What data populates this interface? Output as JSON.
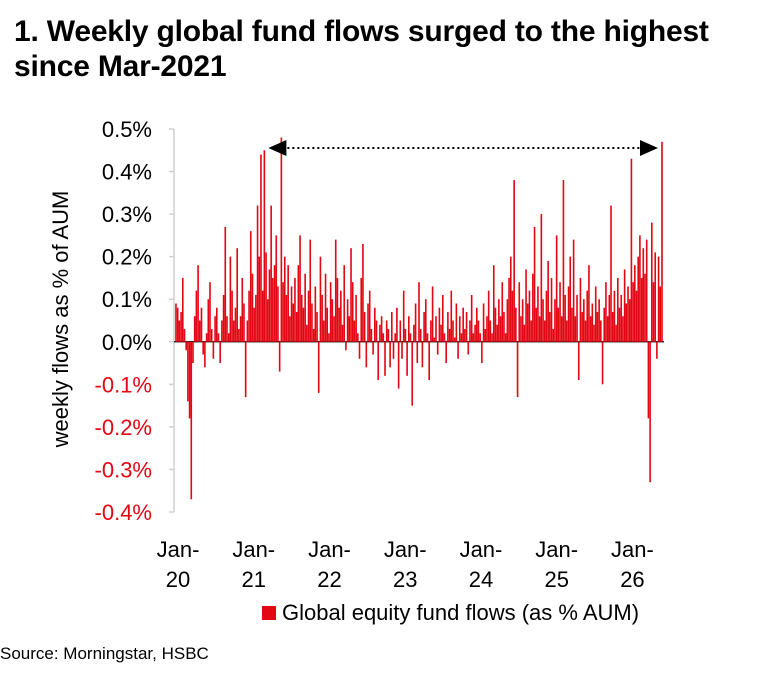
{
  "title": "1. Weekly global fund flows surged to the highest since Mar-2021",
  "source": "Source: Morningstar, HSBC",
  "colors": {
    "series": "#e30613",
    "negative_tick": "#e30613",
    "axis": "#d0d0d0",
    "arrow": "#000000"
  },
  "chart_data": {
    "type": "bar",
    "title": "1. Weekly global fund flows surged to the highest since Mar-2021",
    "ylabel": "weekly flows as % of AUM",
    "xlabel": "",
    "ylim": [
      -0.4,
      0.5
    ],
    "ytick_values": [
      0.5,
      0.4,
      0.3,
      0.2,
      0.1,
      0.0,
      -0.1,
      -0.2,
      -0.3,
      -0.4
    ],
    "ytick_labels": [
      "0.5%",
      "0.4%",
      "0.3%",
      "0.2%",
      "0.1%",
      "0.0%",
      "-0.1%",
      "-0.2%",
      "-0.3%",
      "-0.4%"
    ],
    "xtick_labels": [
      {
        "top": "Jan-",
        "bottom": "20"
      },
      {
        "top": "Jan-",
        "bottom": "21"
      },
      {
        "top": "Jan-",
        "bottom": "22"
      },
      {
        "top": "Jan-",
        "bottom": "23"
      },
      {
        "top": "Jan-",
        "bottom": "24"
      },
      {
        "top": "Jan-",
        "bottom": "25"
      },
      {
        "top": "Jan-",
        "bottom": "26"
      }
    ],
    "x_start": "2020-01",
    "x_end": "2026-06",
    "grid": false,
    "legend": "bottom",
    "series": [
      {
        "name": "Global equity fund flows (as % AUM)"
      }
    ],
    "key_points": [
      {
        "date": "2020-03",
        "value": -0.37
      },
      {
        "date": "2021-01",
        "value": 0.44
      },
      {
        "date": "2021-03",
        "value": 0.48
      },
      {
        "date": "2024-01",
        "value": 0.38
      },
      {
        "date": "2025-01",
        "value": 0.38
      },
      {
        "date": "2025-12",
        "value": 0.43
      },
      {
        "date": "2026-04",
        "value": -0.33
      },
      {
        "date": "2026-06",
        "value": 0.47
      }
    ],
    "annotation": "dotted double arrow from Mar-2021 peak to latest week",
    "weekly_values": [
      0.09,
      0.08,
      0.05,
      0.07,
      0.15,
      0.03,
      -0.02,
      -0.14,
      -0.18,
      -0.37,
      -0.05,
      0.06,
      0.12,
      0.18,
      0.05,
      0.08,
      -0.03,
      -0.06,
      0.02,
      0.1,
      0.14,
      0.03,
      -0.04,
      0.06,
      0.08,
      0.02,
      -0.05,
      0.05,
      0.11,
      0.27,
      0.06,
      0.02,
      0.2,
      0.12,
      0.05,
      0.08,
      0.22,
      0.03,
      0.06,
      0.15,
      0.09,
      -0.13,
      0.05,
      0.12,
      0.26,
      0.16,
      0.08,
      0.11,
      0.32,
      0.2,
      0.44,
      0.12,
      0.45,
      0.21,
      0.1,
      0.17,
      0.32,
      0.15,
      0.18,
      0.25,
      0.13,
      -0.07,
      0.48,
      0.14,
      0.2,
      0.11,
      0.18,
      0.06,
      0.13,
      0.09,
      0.15,
      0.07,
      0.18,
      0.25,
      0.11,
      0.08,
      0.16,
      0.04,
      0.12,
      0.24,
      0.09,
      0.03,
      0.13,
      0.07,
      -0.12,
      0.2,
      0.11,
      0.05,
      0.16,
      0.08,
      0.02,
      0.14,
      0.1,
      0.06,
      0.24,
      0.15,
      0.08,
      0.12,
      0.04,
      0.18,
      -0.02,
      0.1,
      0.06,
      0.22,
      0.14,
      0.05,
      0.11,
      0.02,
      -0.04,
      0.15,
      0.23,
      0.07,
      -0.06,
      0.09,
      0.12,
      0.03,
      -0.03,
      0.08,
      0.05,
      -0.09,
      0.04,
      0.06,
      0.02,
      -0.08,
      0.05,
      0.03,
      -0.06,
      0.07,
      -0.04,
      0.02,
      0.08,
      -0.11,
      0.05,
      -0.04,
      0.12,
      0.03,
      -0.08,
      0.06,
      0.02,
      -0.15,
      0.04,
      0.09,
      -0.05,
      0.14,
      0.03,
      -0.06,
      0.07,
      0.1,
      0.02,
      -0.09,
      0.05,
      0.13,
      0.01,
      0.06,
      -0.03,
      0.08,
      0.04,
      0.11,
      0.02,
      -0.05,
      0.07,
      0.03,
      0.12,
      0.05,
      0.01,
      0.09,
      -0.04,
      0.06,
      0.02,
      0.08,
      0.03,
      0.07,
      -0.03,
      0.05,
      0.11,
      0.02,
      0.04,
      0.08,
      0.05,
      0.02,
      -0.05,
      0.09,
      0.03,
      0.06,
      0.12,
      0.05,
      0.02,
      0.18,
      0.08,
      0.04,
      0.1,
      0.06,
      0.14,
      0.07,
      0.02,
      0.1,
      0.15,
      0.2,
      0.12,
      0.38,
      0.08,
      -0.13,
      0.14,
      0.06,
      0.1,
      0.04,
      0.17,
      0.09,
      0.12,
      0.05,
      0.16,
      0.27,
      0.08,
      0.13,
      0.06,
      0.3,
      0.1,
      0.05,
      0.12,
      0.19,
      0.07,
      0.15,
      0.03,
      0.1,
      0.25,
      0.08,
      0.14,
      0.06,
      0.38,
      0.11,
      0.05,
      0.13,
      0.2,
      0.08,
      0.24,
      0.06,
      0.11,
      -0.09,
      0.15,
      0.07,
      0.1,
      0.05,
      0.12,
      0.18,
      0.06,
      0.09,
      0.04,
      0.13,
      0.07,
      0.1,
      0.05,
      -0.1,
      0.08,
      0.14,
      0.06,
      0.11,
      0.32,
      0.07,
      0.12,
      0.04,
      0.15,
      0.08,
      0.11,
      0.06,
      0.17,
      0.09,
      0.13,
      0.1,
      0.43,
      0.14,
      0.18,
      0.12,
      0.2,
      0.25,
      0.15,
      0.22,
      0.16,
      0.24,
      -0.18,
      -0.33,
      0.28,
      0.14,
      0.21,
      -0.04,
      0.2,
      0.13,
      0.47
    ]
  }
}
